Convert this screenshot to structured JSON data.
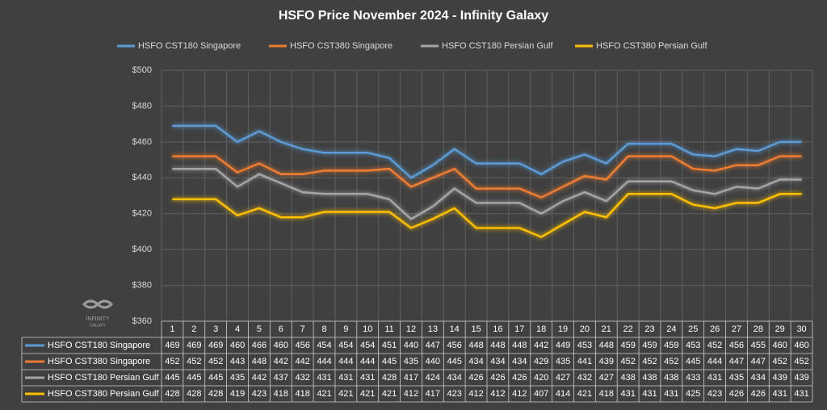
{
  "chart_data": {
    "type": "line",
    "title": "HSFO Price November 2024 - Infinity Galaxy",
    "categories": [
      1,
      2,
      3,
      4,
      5,
      6,
      7,
      8,
      9,
      10,
      11,
      12,
      13,
      14,
      15,
      16,
      17,
      18,
      19,
      20,
      21,
      22,
      23,
      24,
      25,
      26,
      27,
      28,
      29,
      30
    ],
    "series": [
      {
        "name": "HSFO CST180 Singapore",
        "color": "#5b9bd5",
        "values": [
          469,
          469,
          469,
          460,
          466,
          460,
          456,
          454,
          454,
          454,
          451,
          440,
          447,
          456,
          448,
          448,
          448,
          442,
          449,
          453,
          448,
          459,
          459,
          459,
          453,
          452,
          456,
          455,
          460,
          460
        ]
      },
      {
        "name": "HSFO CST380 Singapore",
        "color": "#ed7d31",
        "values": [
          452,
          452,
          452,
          443,
          448,
          442,
          442,
          444,
          444,
          444,
          445,
          435,
          440,
          445,
          434,
          434,
          434,
          429,
          435,
          441,
          439,
          452,
          452,
          452,
          445,
          444,
          447,
          447,
          452,
          452
        ]
      },
      {
        "name": "HSFO CST180 Persian Gulf",
        "color": "#a5a5a5",
        "values": [
          445,
          445,
          445,
          435,
          442,
          437,
          432,
          431,
          431,
          431,
          428,
          417,
          424,
          434,
          426,
          426,
          426,
          420,
          427,
          432,
          427,
          438,
          438,
          438,
          433,
          431,
          435,
          434,
          439,
          439
        ]
      },
      {
        "name": "HSFO CST380 Persian Gulf",
        "color": "#ffc000",
        "values": [
          428,
          428,
          428,
          419,
          423,
          418,
          418,
          421,
          421,
          421,
          421,
          412,
          417,
          423,
          412,
          412,
          412,
          407,
          414,
          421,
          418,
          431,
          431,
          431,
          425,
          423,
          426,
          426,
          431,
          431
        ]
      }
    ],
    "ylim": [
      360,
      500
    ],
    "yticks": [
      {
        "value": 360,
        "label": "$360"
      },
      {
        "value": 380,
        "label": "$380"
      },
      {
        "value": 400,
        "label": "$400"
      },
      {
        "value": 420,
        "label": "$420"
      },
      {
        "value": 440,
        "label": "$440"
      },
      {
        "value": 460,
        "label": "$460"
      },
      {
        "value": 480,
        "label": "$480"
      },
      {
        "value": 500,
        "label": "$500"
      }
    ],
    "grid": true,
    "legend": "top",
    "data_table": true
  },
  "logo": {
    "name": "INFINITY",
    "sub": "GALAXY"
  }
}
